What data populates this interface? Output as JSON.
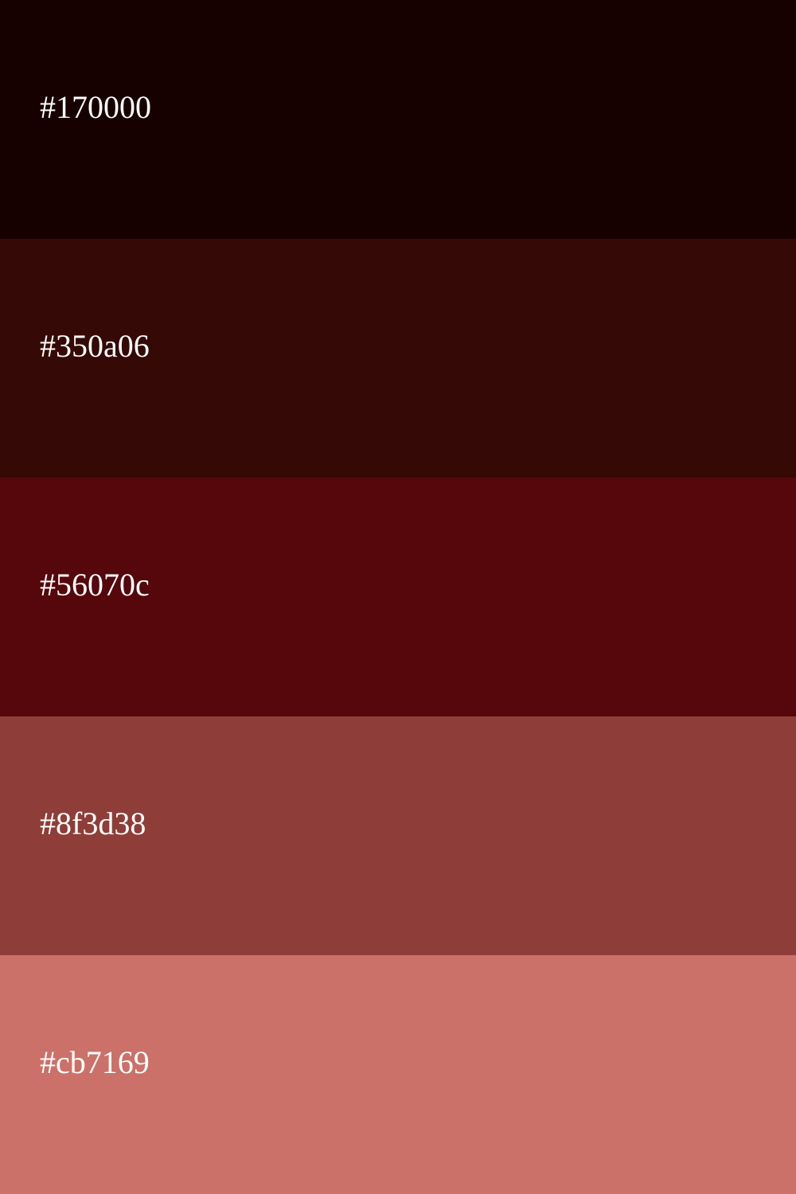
{
  "palette": {
    "swatches": [
      {
        "label": "#170000",
        "color": "#170000"
      },
      {
        "label": "#350a06",
        "color": "#350a06"
      },
      {
        "label": "#56070c",
        "color": "#56070c"
      },
      {
        "label": "#8f3d38",
        "color": "#8f3d38"
      },
      {
        "label": "#cb7169",
        "color": "#cb7169"
      }
    ],
    "text_color": "#ffffff"
  }
}
